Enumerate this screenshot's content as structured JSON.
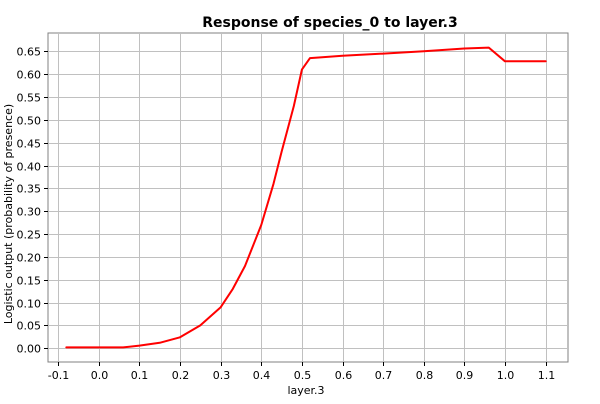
{
  "chart_data": {
    "type": "line",
    "title": "Response of species_0 to layer.3",
    "xlabel": "layer.3",
    "ylabel": "Logistic output (probability of presence)",
    "xlim": [
      -0.125,
      1.155
    ],
    "ylim": [
      -0.03,
      0.69
    ],
    "xticks": [
      -0.1,
      0.0,
      0.1,
      0.2,
      0.3,
      0.4,
      0.5,
      0.6,
      0.7,
      0.8,
      0.9,
      1.0,
      1.1
    ],
    "xtick_labels": [
      "-0.1",
      "0.0",
      "0.1",
      "0.2",
      "0.3",
      "0.4",
      "0.5",
      "0.6",
      "0.7",
      "0.8",
      "0.9",
      "1.0",
      "1.1"
    ],
    "yticks": [
      0.0,
      0.05,
      0.1,
      0.15,
      0.2,
      0.25,
      0.3,
      0.35,
      0.4,
      0.45,
      0.5,
      0.55,
      0.6,
      0.65
    ],
    "ytick_labels": [
      "0.00",
      "0.05",
      "0.10",
      "0.15",
      "0.20",
      "0.25",
      "0.30",
      "0.35",
      "0.40",
      "0.45",
      "0.50",
      "0.55",
      "0.60",
      "0.65"
    ],
    "grid": true,
    "series": [
      {
        "color": "#ff0000",
        "x": [
          -0.08,
          0.0,
          0.06,
          0.1,
          0.15,
          0.2,
          0.25,
          0.3,
          0.33,
          0.36,
          0.4,
          0.43,
          0.45,
          0.48,
          0.5,
          0.52,
          0.55,
          0.6,
          0.7,
          0.8,
          0.9,
          0.96,
          1.0,
          1.1
        ],
        "y": [
          0.002,
          0.002,
          0.002,
          0.006,
          0.012,
          0.024,
          0.05,
          0.09,
          0.13,
          0.18,
          0.27,
          0.36,
          0.43,
          0.53,
          0.61,
          0.635,
          0.637,
          0.64,
          0.645,
          0.65,
          0.656,
          0.658,
          0.628,
          0.628
        ]
      }
    ]
  }
}
